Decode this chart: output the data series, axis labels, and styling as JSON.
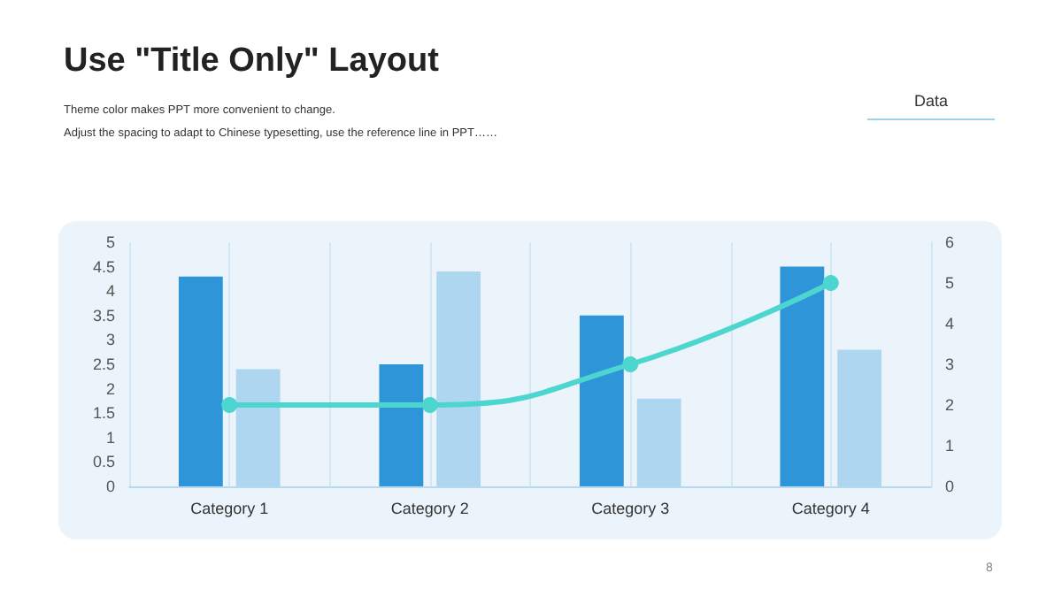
{
  "chart_data": {
    "type": "bar",
    "title": "Use \"Title Only\" Layout",
    "subtitle": "Theme color makes PPT more convenient to change.\nAdjust the spacing to adapt to Chinese typesetting, use the reference line in PPT……",
    "annotations": [
      "Data",
      "8"
    ],
    "categories": [
      "Category 1",
      "Category 2",
      "Category 3",
      "Category 4"
    ],
    "series": [
      {
        "color": "#2e96d8",
        "values": [
          4.3,
          2.5,
          3.5,
          4.5
        ]
      },
      {
        "color": "#aed6f0",
        "values": [
          2.4,
          4.4,
          1.8,
          2.8
        ]
      },
      {
        "type": "line",
        "axis": "y2",
        "color": "#4dd6d0",
        "values": [
          2,
          2,
          3,
          5
        ]
      }
    ],
    "ylim": [
      0,
      5
    ],
    "yticks": [
      0,
      0.5,
      1,
      1.5,
      2,
      2.5,
      3,
      3.5,
      4,
      4.5,
      5
    ],
    "y2lim": [
      0,
      6
    ],
    "y2ticks": [
      0,
      1,
      2,
      3,
      4,
      5,
      6
    ],
    "grid": "x",
    "marker": "circle"
  }
}
